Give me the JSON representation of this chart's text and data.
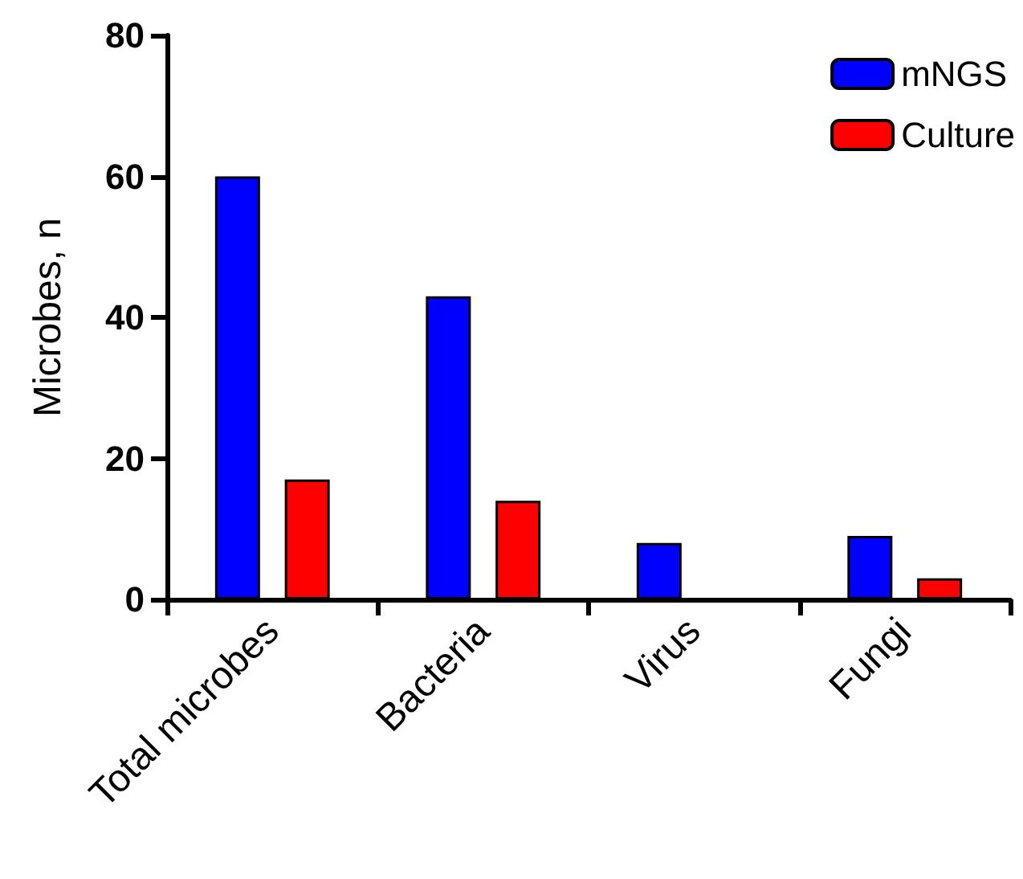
{
  "chart_data": {
    "type": "bar",
    "ylabel": "Microbes, n",
    "categories": [
      "Total microbes",
      "Bacteria",
      "Virus",
      "Fungi"
    ],
    "series": [
      {
        "name": "mNGS",
        "color": "#0000ff",
        "values": [
          60,
          43,
          8,
          9
        ]
      },
      {
        "name": "Culture",
        "color": "#ff0000",
        "values": [
          17,
          14,
          0,
          3
        ]
      }
    ],
    "ylim": [
      0,
      80
    ],
    "yticks": [
      0,
      20,
      40,
      60,
      80
    ],
    "grid": false,
    "legend": "top right"
  }
}
